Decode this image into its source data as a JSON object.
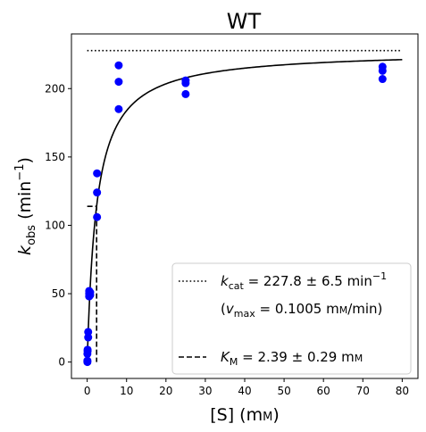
{
  "chart_data": {
    "type": "scatter",
    "title": "WT",
    "xlabel": {
      "main": "[S] (m",
      "unit_sc": "M",
      "close": ")"
    },
    "ylabel": {
      "k": "k",
      "sub": "obs",
      "unit": " (min",
      "sup": "−1",
      "close": ")"
    },
    "xlim": [
      -4,
      84
    ],
    "ylim": [
      -12,
      240
    ],
    "xticks": [
      0,
      10,
      20,
      30,
      40,
      50,
      60,
      70,
      80
    ],
    "yticks": [
      0,
      50,
      100,
      150,
      200
    ],
    "grid": false,
    "legend_position": "bottom-right",
    "marker_color": "#0000ff",
    "line_color": "#000000",
    "data_points": {
      "x": [
        0.05,
        0.05,
        0.05,
        0.1,
        0.1,
        0.25,
        0.25,
        0.5,
        0.5,
        0.5,
        0.75,
        0.75,
        2.5,
        2.5,
        2.5,
        8.0,
        8.0,
        8.0,
        25.0,
        25.0,
        25.0,
        75.0,
        75.0,
        75.0
      ],
      "y": [
        0,
        1,
        6,
        8,
        9,
        18,
        22,
        48,
        50,
        52,
        49,
        51,
        106,
        124,
        138,
        185,
        205,
        217,
        196,
        204,
        206,
        207,
        213,
        216
      ]
    },
    "fit": {
      "model": "michaelis-menten",
      "kcat": 227.8,
      "KM": 2.39,
      "x_range": [
        0,
        80
      ]
    },
    "kcat_line": {
      "y": 227.8,
      "x_range": [
        0,
        80
      ]
    },
    "km_marker": {
      "x": 2.39,
      "y_half": 113.9
    },
    "legend": {
      "kcat": {
        "k": "k",
        "sub": "cat",
        "text": " = 227.8 ± 6.5 min",
        "sup": "−1"
      },
      "vmax": {
        "open": "(",
        "v": "v",
        "sub": "max",
        "text": " = 0.1005 m",
        "unit_sc": "M",
        "tail": "/min)"
      },
      "km": {
        "k": "K",
        "sub": "M",
        "text": " = 2.39 ± 0.29 m",
        "unit_sc": "M"
      }
    }
  }
}
